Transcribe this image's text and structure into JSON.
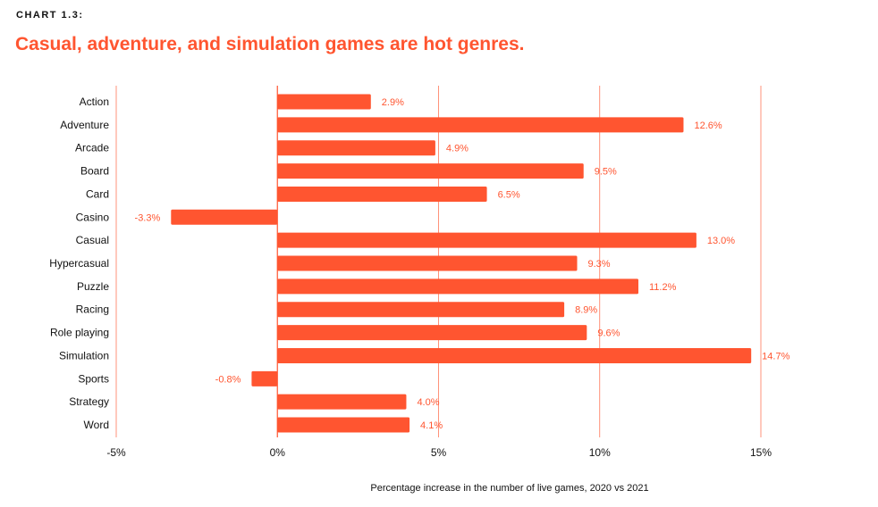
{
  "kicker": "CHART 1.3:",
  "title": "Casual, adventure, and simulation games are hot genres.",
  "colors": {
    "bar": "#ff5530",
    "grid": "#ff5530"
  },
  "chart_data": {
    "type": "bar",
    "orientation": "horizontal",
    "categories": [
      "Action",
      "Adventure",
      "Arcade",
      "Board",
      "Card",
      "Casino",
      "Casual",
      "Hypercasual",
      "Puzzle",
      "Racing",
      "Role playing",
      "Simulation",
      "Sports",
      "Strategy",
      "Word"
    ],
    "values": [
      2.9,
      12.6,
      4.9,
      9.5,
      6.5,
      -3.3,
      13.0,
      9.3,
      11.2,
      8.9,
      9.6,
      14.7,
      -0.8,
      4.0,
      4.1
    ],
    "data_labels": [
      "2.9%",
      "12.6%",
      "4.9%",
      "9.5%",
      "6.5%",
      "-3.3%",
      "13.0%",
      "9.3%",
      "11.2%",
      "8.9%",
      "9.6%",
      "14.7%",
      "-0.8%",
      "4.0%",
      "4.1%"
    ],
    "xlim": [
      -5,
      15
    ],
    "xticks": [
      -5,
      0,
      5,
      10,
      15
    ],
    "xtick_labels": [
      "-5%",
      "0%",
      "5%",
      "10%",
      "15%"
    ],
    "xlabel": "Percentage increase in the number of live games, 2020 vs 2021",
    "grid": "vertical"
  }
}
